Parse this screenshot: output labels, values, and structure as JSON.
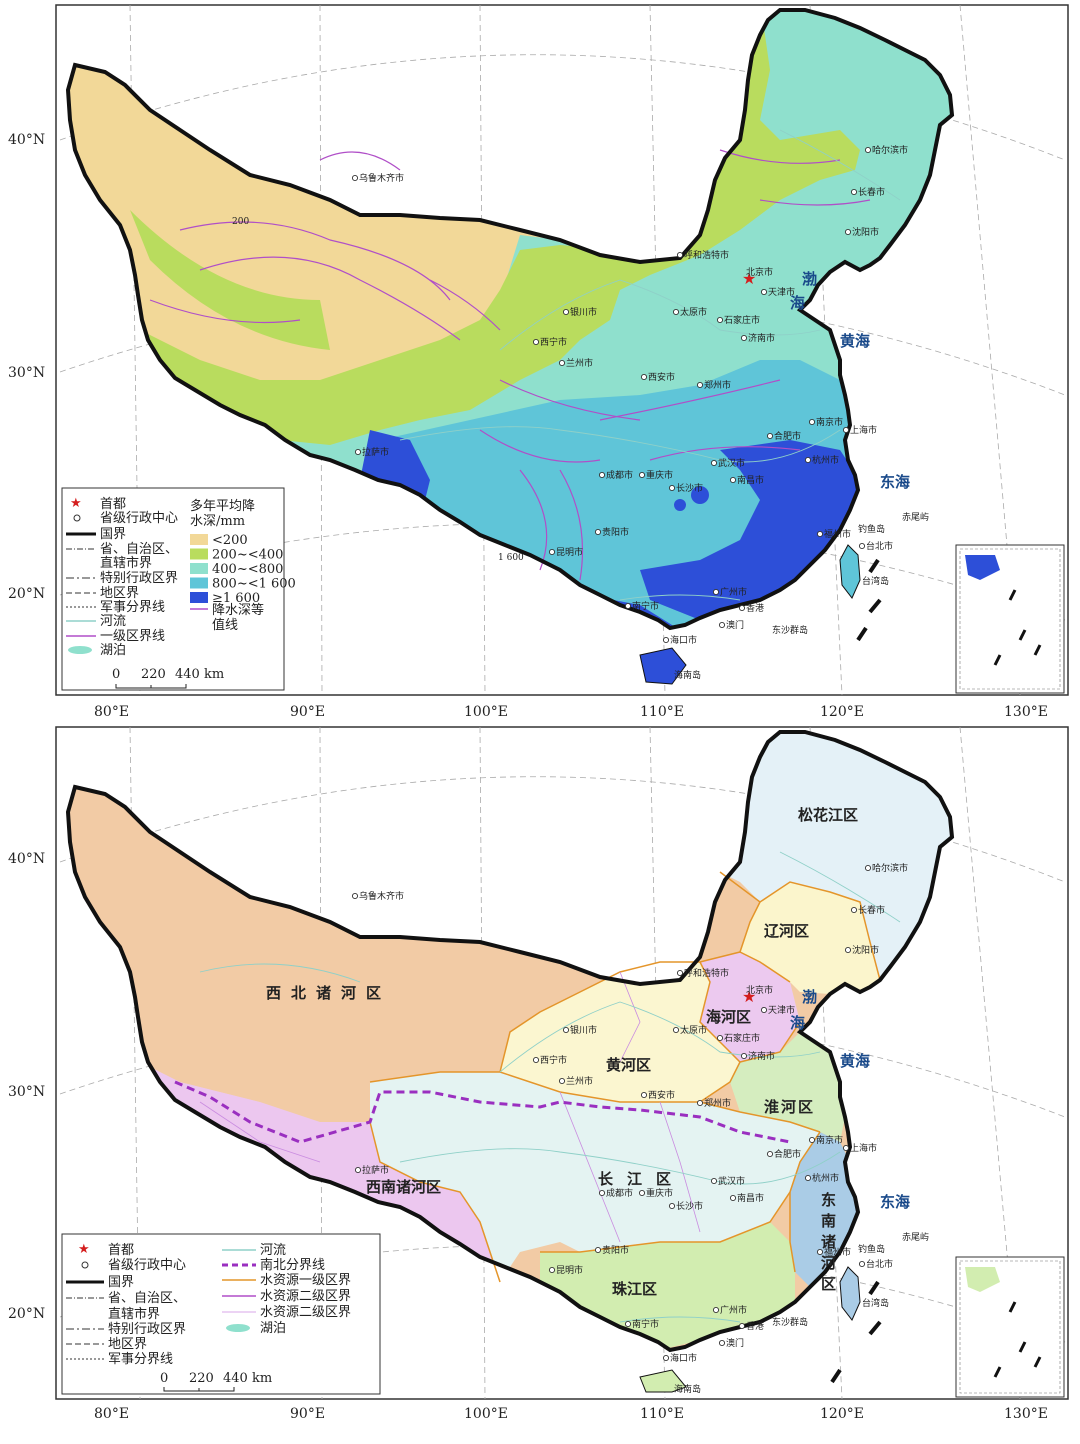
{
  "x_axis": [
    "80°E",
    "90°E",
    "100°E",
    "110°E",
    "120°E",
    "130°E"
  ],
  "y_axis": [
    "40°N",
    "30°N",
    "20°N"
  ],
  "seas": [
    "渤",
    "海",
    "黄海",
    "东海"
  ],
  "islands": [
    "台湾岛",
    "海南岛",
    "钓鱼岛",
    "赤尾屿",
    "东沙群岛"
  ],
  "cities": [
    {
      "name": "乌鲁木齐市"
    },
    {
      "name": "哈尔滨市"
    },
    {
      "name": "长春市"
    },
    {
      "name": "沈阳市"
    },
    {
      "name": "呼和浩特市"
    },
    {
      "name": "北京市",
      "capital": true
    },
    {
      "name": "天津市"
    },
    {
      "name": "石家庄市"
    },
    {
      "name": "太原市"
    },
    {
      "name": "银川市"
    },
    {
      "name": "济南市"
    },
    {
      "name": "西宁市"
    },
    {
      "name": "兰州市"
    },
    {
      "name": "西安市"
    },
    {
      "name": "郑州市"
    },
    {
      "name": "南京市"
    },
    {
      "name": "上海市"
    },
    {
      "name": "合肥市"
    },
    {
      "name": "成都市"
    },
    {
      "name": "重庆市"
    },
    {
      "name": "武汉市"
    },
    {
      "name": "杭州市"
    },
    {
      "name": "拉萨市"
    },
    {
      "name": "长沙市"
    },
    {
      "name": "南昌市"
    },
    {
      "name": "贵阳市"
    },
    {
      "name": "福州市"
    },
    {
      "name": "台北市"
    },
    {
      "name": "昆明市"
    },
    {
      "name": "南宁市"
    },
    {
      "name": "广州市"
    },
    {
      "name": "香港"
    },
    {
      "name": "澳门"
    },
    {
      "name": "海口市"
    }
  ],
  "top_map": {
    "legend_items": [
      "首都",
      "省级行政中心",
      "国界",
      "省、自治区、",
      "直辖市界",
      "特别行政区界",
      "地区界",
      "军事分界线",
      "河流",
      "一级区界线",
      "湖泊"
    ],
    "legend_title": [
      "多年平均降",
      "水深/mm"
    ],
    "classes": [
      {
        "label": "<200",
        "color": "#f2d898"
      },
      {
        "label": "200~<400",
        "color": "#b9dc5e"
      },
      {
        "label": "400~<800",
        "color": "#8fe0cd"
      },
      {
        "label": "800~<1 600",
        "color": "#5fc5d8"
      },
      {
        "label": "≥1 600",
        "color": "#2d4fd8"
      }
    ],
    "isoline_label": [
      "降水深等",
      "值线"
    ],
    "contour_labels": [
      "200",
      "1 600"
    ],
    "scale_ticks": [
      "0",
      "220",
      "440 km"
    ]
  },
  "bottom_map": {
    "regions": [
      {
        "name": "松花江区",
        "color": "#e4f1f7"
      },
      {
        "name": "辽河区",
        "color": "#fbf5cc"
      },
      {
        "name": "海河区",
        "color": "#ecc9ef"
      },
      {
        "name": "黄河区",
        "color": "#fbf6d0"
      },
      {
        "name": "淮河区",
        "color": "#d5edbf"
      },
      {
        "name": "长江区",
        "color": "#e4f3f2"
      },
      {
        "name": "东南诸河区",
        "color": "#aacce6"
      },
      {
        "name": "珠江区",
        "color": "#d2edb0"
      },
      {
        "name": "西南诸河区",
        "color": "#ecc7ef"
      },
      {
        "name": "西北诸河区",
        "color": "#f2cba5"
      }
    ],
    "legend_left": [
      "首都",
      "省级行政中心",
      "国界",
      "省、自治区、",
      "直辖市界",
      "特别行政区界",
      "地区界",
      "军事分界线"
    ],
    "legend_right": [
      "河流",
      "南北分界线",
      "水资源一级区界",
      "水资源二级区界",
      "水资源二级区界",
      "湖泊"
    ],
    "scale_ticks": [
      "0",
      "220",
      "440 km"
    ]
  }
}
